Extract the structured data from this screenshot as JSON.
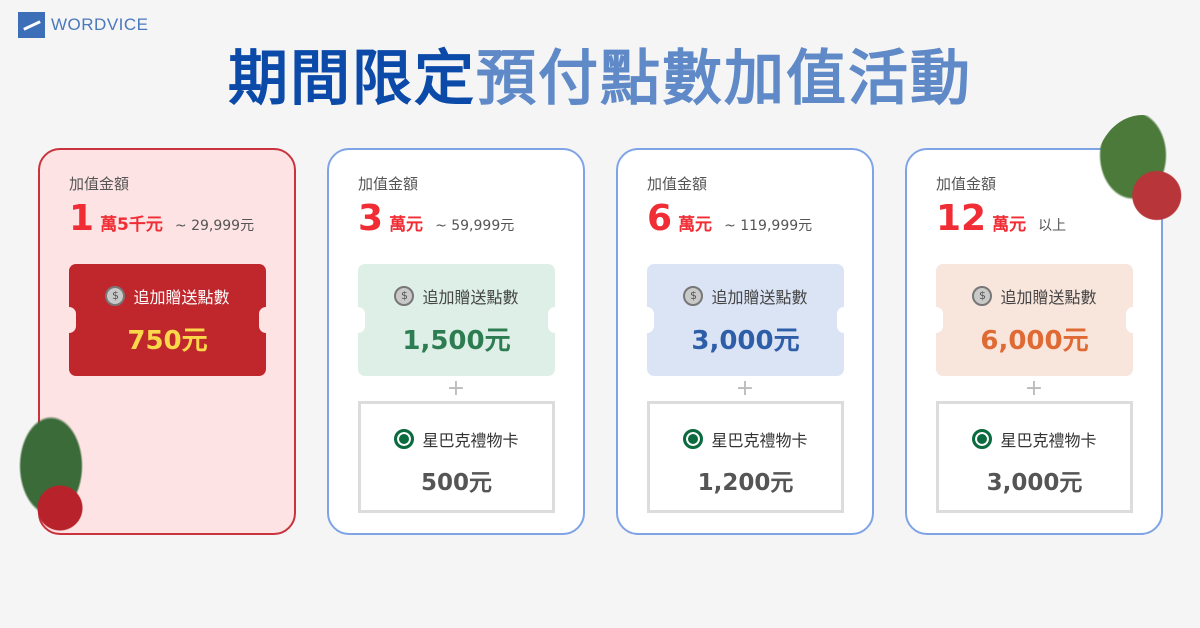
{
  "brand": {
    "name": "WORDVICE"
  },
  "title": {
    "part1": "期間限定",
    "part2": "預付點數加值活動"
  },
  "tiers": [
    {
      "label": "加值金額",
      "big": "1",
      "unit": "萬5千元",
      "range": "~ 29,999元",
      "bonus_label": "追加贈送點數",
      "bonus": "750元",
      "bonus_color": "#fbd84a",
      "ticket_bg": "#c0272d"
    },
    {
      "label": "加值金額",
      "big": "3",
      "unit": "萬元",
      "range": "~ 59,999元",
      "bonus_label": "追加贈送點數",
      "bonus": "1,500元",
      "bonus_color": "#2e7d52",
      "ticket_bg": "#ddefe6",
      "plus": "+",
      "gift_label": "星巴克禮物卡",
      "gift": "500元"
    },
    {
      "label": "加值金額",
      "big": "6",
      "unit": "萬元",
      "range": "~ 119,999元",
      "bonus_label": "追加贈送點數",
      "bonus": "3,000元",
      "bonus_color": "#2f5ea8",
      "ticket_bg": "#dbe4f5",
      "plus": "+",
      "gift_label": "星巴克禮物卡",
      "gift": "1,200元"
    },
    {
      "label": "加值金額",
      "big": "12",
      "unit": "萬元",
      "range": "以上",
      "bonus_label": "追加贈送點數",
      "bonus": "6,000元",
      "bonus_color": "#e06a34",
      "ticket_bg": "#f8e5dc",
      "plus": "+",
      "gift_label": "星巴克禮物卡",
      "gift": "3,000元"
    }
  ],
  "icons": {
    "coin": "$"
  }
}
